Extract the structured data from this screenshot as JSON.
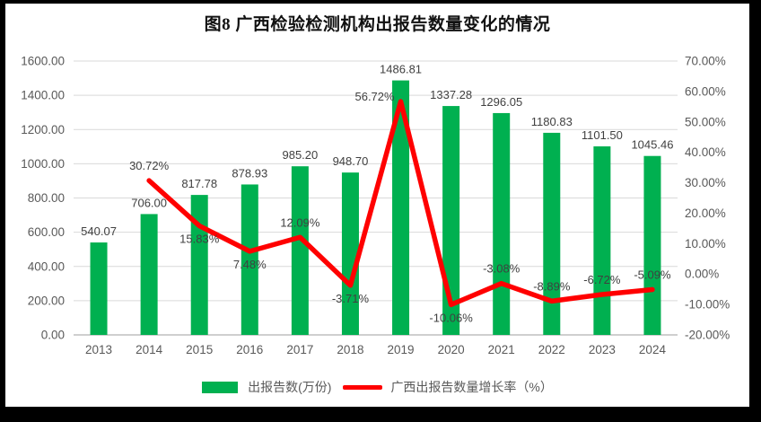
{
  "title": "图8  广西检验检测机构出报告数量变化的情况",
  "legend": {
    "bar_label": "出报告数(万份)",
    "line_label": "广西出报告数量增长率（%）"
  },
  "colors": {
    "bar": "#00B050",
    "line": "#FF0000",
    "gridline": "#D9D9D9",
    "axis_line": "#BFBFBF",
    "tick_text": "#595959",
    "data_label_text": "#404040",
    "background": "#FFFFFF",
    "frame": "#000000"
  },
  "chart_data": {
    "type": "bar",
    "subtype": "combo-bar-line-dual-axis",
    "title": "图8  广西检验检测机构出报告数量变化的情况",
    "categories": [
      "2013",
      "2014",
      "2015",
      "2016",
      "2017",
      "2018",
      "2019",
      "2020",
      "2021",
      "2022",
      "2023",
      "2024"
    ],
    "series": [
      {
        "name": "出报告数(万份)",
        "type": "bar",
        "axis": "left",
        "color": "#00B050",
        "values": [
          540.07,
          706.0,
          817.78,
          878.93,
          985.2,
          948.7,
          1486.81,
          1337.28,
          1296.05,
          1180.83,
          1101.5,
          1045.46
        ],
        "data_labels": [
          "540.07",
          "706.00",
          "817.78",
          "878.93",
          "985.20",
          "948.70",
          "1486.81",
          "1337.28",
          "1296.05",
          "1180.83",
          "1101.50",
          "1045.46"
        ]
      },
      {
        "name": "广西出报告数量增长率（%）",
        "type": "line",
        "axis": "right",
        "color": "#FF0000",
        "values": [
          null,
          30.72,
          15.83,
          7.48,
          12.09,
          -3.71,
          56.72,
          -10.06,
          -3.08,
          -8.89,
          -6.72,
          -5.09
        ],
        "data_labels": [
          null,
          "30.72%",
          "15.83%",
          "7.48%",
          "12.09%",
          "-3.71%",
          "56.72%",
          "-10.06%",
          "-3.08%",
          "-8.89%",
          "-6.72%",
          "-5.09%"
        ],
        "label_positions": [
          null,
          "above",
          "below",
          "below",
          "above",
          "below",
          "left",
          "below",
          "above",
          "above",
          "above",
          "above"
        ]
      }
    ],
    "left_axis": {
      "min": 0,
      "max": 1600,
      "step": 200,
      "tick_labels": [
        "0.00",
        "200.00",
        "400.00",
        "600.00",
        "800.00",
        "1000.00",
        "1200.00",
        "1400.00",
        "1600.00"
      ]
    },
    "right_axis": {
      "min": -20,
      "max": 70,
      "step": 10,
      "tick_labels": [
        "-20.00%",
        "-10.00%",
        "0.00%",
        "10.00%",
        "20.00%",
        "30.00%",
        "40.00%",
        "50.00%",
        "60.00%",
        "70.00%"
      ]
    },
    "grid": "horizontal",
    "legend_position": "bottom",
    "xlabel": "",
    "ylabel": ""
  }
}
